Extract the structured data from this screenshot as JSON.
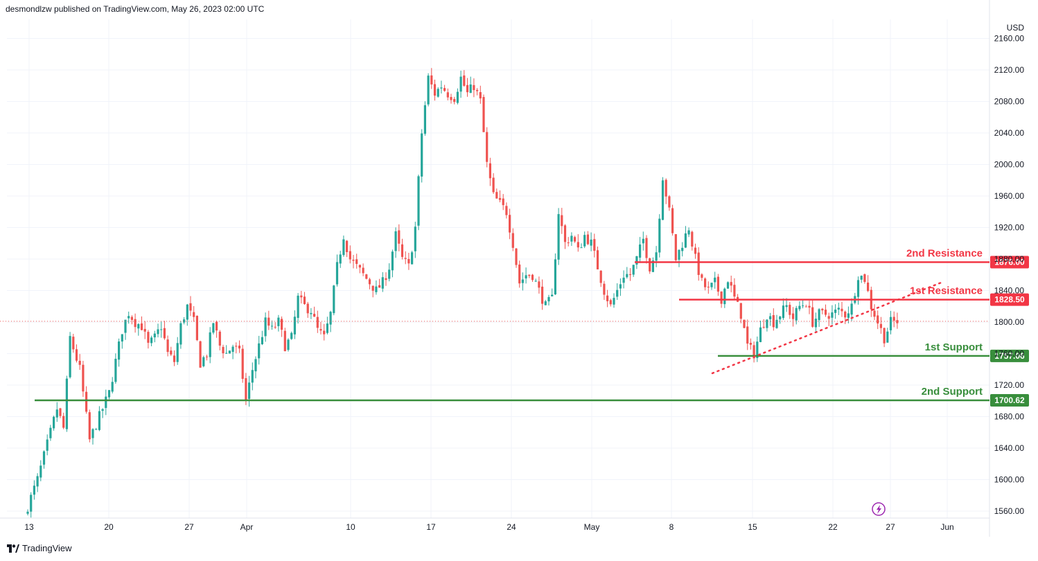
{
  "header": {
    "publisher_text": "desmondlzw published on TradingView.com, May 26, 2023 02:00 UTC"
  },
  "footer": {
    "logo_text": "TradingView"
  },
  "colors": {
    "up": "#26a69a",
    "down": "#ef5350",
    "resistance": "#f23645",
    "support": "#388e3c",
    "grid": "#f0f3fa",
    "text": "#131722"
  },
  "icons": {
    "logo": "tradingview-logo-icon",
    "flash": "lightning-icon"
  },
  "chart_data": {
    "type": "candlestick",
    "currency": "USD",
    "ylim": [
      1550,
      2170
    ],
    "y_ticks": [
      "2160.00",
      "2120.00",
      "2080.00",
      "2040.00",
      "2000.00",
      "1960.00",
      "1920.00",
      "1880.00",
      "1840.00",
      "1800.00",
      "1760.00",
      "1720.00",
      "1680.00",
      "1640.00",
      "1600.00",
      "1560.00"
    ],
    "x_ticks": [
      "13",
      "20",
      "27",
      "Apr",
      "10",
      "17",
      "24",
      "May",
      "8",
      "15",
      "22",
      "27",
      "Jun"
    ],
    "levels": [
      {
        "name": "2nd Resistance",
        "value": "1876.00",
        "kind": "resistance"
      },
      {
        "name": "1st Resistance",
        "value": "1828.50",
        "kind": "resistance"
      },
      {
        "name": "1st Support",
        "value": "1757.06",
        "kind": "support"
      },
      {
        "name": "2nd Support",
        "value": "1700.62",
        "kind": "support"
      }
    ],
    "current_price": 1801,
    "trendline": {
      "from_price": 1735,
      "to_price": 1850,
      "from_date": "May 11",
      "to_date": "May 26"
    },
    "close_path": [
      [
        0,
        1555
      ],
      [
        4,
        1600
      ],
      [
        8,
        1660
      ],
      [
        10,
        1690
      ],
      [
        12,
        1665
      ],
      [
        14,
        1780
      ],
      [
        17,
        1740
      ],
      [
        20,
        1650
      ],
      [
        23,
        1680
      ],
      [
        26,
        1710
      ],
      [
        28,
        1750
      ],
      [
        30,
        1790
      ],
      [
        32,
        1812
      ],
      [
        34,
        1800
      ],
      [
        36,
        1795
      ],
      [
        38,
        1770
      ],
      [
        40,
        1780
      ],
      [
        42,
        1795
      ],
      [
        44,
        1760
      ],
      [
        46,
        1750
      ],
      [
        48,
        1795
      ],
      [
        50,
        1820
      ],
      [
        52,
        1800
      ],
      [
        54,
        1748
      ],
      [
        56,
        1760
      ],
      [
        58,
        1800
      ],
      [
        60,
        1770
      ],
      [
        62,
        1760
      ],
      [
        64,
        1770
      ],
      [
        66,
        1760
      ],
      [
        68,
        1700
      ],
      [
        70,
        1740
      ],
      [
        72,
        1770
      ],
      [
        74,
        1800
      ],
      [
        76,
        1790
      ],
      [
        78,
        1800
      ],
      [
        80,
        1770
      ],
      [
        82,
        1780
      ],
      [
        84,
        1830
      ],
      [
        86,
        1820
      ],
      [
        88,
        1815
      ],
      [
        90,
        1790
      ],
      [
        92,
        1780
      ],
      [
        94,
        1810
      ],
      [
        96,
        1870
      ],
      [
        98,
        1910
      ],
      [
        100,
        1880
      ],
      [
        102,
        1870
      ],
      [
        104,
        1860
      ],
      [
        106,
        1850
      ],
      [
        108,
        1840
      ],
      [
        110,
        1850
      ],
      [
        112,
        1870
      ],
      [
        114,
        1910
      ],
      [
        116,
        1880
      ],
      [
        118,
        1870
      ],
      [
        120,
        1920
      ],
      [
        122,
        2040
      ],
      [
        124,
        2110
      ],
      [
        126,
        2090
      ],
      [
        128,
        2100
      ],
      [
        130,
        2090
      ],
      [
        132,
        2085
      ],
      [
        134,
        2110
      ],
      [
        136,
        2090
      ],
      [
        138,
        2100
      ],
      [
        140,
        2080
      ],
      [
        142,
        2000
      ],
      [
        144,
        1960
      ],
      [
        146,
        1950
      ],
      [
        148,
        1940
      ],
      [
        150,
        1900
      ],
      [
        152,
        1850
      ],
      [
        154,
        1860
      ],
      [
        156,
        1860
      ],
      [
        158,
        1840
      ],
      [
        160,
        1820
      ],
      [
        162,
        1830
      ],
      [
        164,
        1940
      ],
      [
        166,
        1900
      ],
      [
        168,
        1910
      ],
      [
        170,
        1890
      ],
      [
        172,
        1910
      ],
      [
        174,
        1900
      ],
      [
        176,
        1870
      ],
      [
        178,
        1840
      ],
      [
        180,
        1820
      ],
      [
        182,
        1840
      ],
      [
        184,
        1860
      ],
      [
        186,
        1860
      ],
      [
        188,
        1880
      ],
      [
        190,
        1905
      ],
      [
        192,
        1870
      ],
      [
        194,
        1890
      ],
      [
        196,
        1985
      ],
      [
        198,
        1940
      ],
      [
        200,
        1880
      ],
      [
        202,
        1900
      ],
      [
        204,
        1920
      ],
      [
        206,
        1880
      ],
      [
        208,
        1850
      ],
      [
        210,
        1840
      ],
      [
        212,
        1850
      ],
      [
        214,
        1830
      ],
      [
        216,
        1855
      ],
      [
        218,
        1830
      ],
      [
        220,
        1810
      ],
      [
        222,
        1770
      ],
      [
        224,
        1760
      ],
      [
        226,
        1790
      ],
      [
        228,
        1810
      ],
      [
        230,
        1800
      ],
      [
        232,
        1810
      ],
      [
        234,
        1820
      ],
      [
        236,
        1805
      ],
      [
        238,
        1820
      ],
      [
        240,
        1825
      ],
      [
        242,
        1800
      ],
      [
        244,
        1810
      ],
      [
        246,
        1810
      ],
      [
        248,
        1810
      ],
      [
        250,
        1815
      ],
      [
        252,
        1810
      ],
      [
        254,
        1820
      ],
      [
        256,
        1860
      ],
      [
        258,
        1855
      ],
      [
        260,
        1820
      ],
      [
        262,
        1800
      ],
      [
        264,
        1780
      ],
      [
        266,
        1800
      ],
      [
        268,
        1801
      ]
    ]
  }
}
